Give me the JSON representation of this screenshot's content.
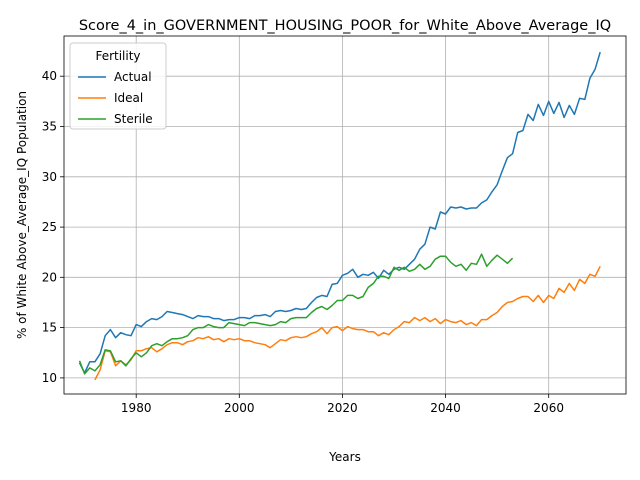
{
  "chart_data": {
    "type": "line",
    "title": "Score_4_in_GOVERNMENT_HOUSING_POOR_for_White_Above_Average_IQ",
    "xlabel": "Years",
    "ylabel": "% of White Above_Average_IQ Population",
    "xlim": [
      1966,
      2075
    ],
    "ylim": [
      8.4,
      44.0
    ],
    "xticks": [
      1980,
      2000,
      2020,
      2040,
      2060
    ],
    "yticks": [
      10,
      15,
      20,
      25,
      30,
      35,
      40
    ],
    "grid": true,
    "legend": {
      "title": "Fertility",
      "placement": "top-left"
    },
    "series": [
      {
        "name": "Actual",
        "color": "#1f77b4",
        "points": [
          [
            1969,
            11.5
          ],
          [
            1970,
            10.5
          ],
          [
            1971,
            11.6
          ],
          [
            1972,
            11.6
          ],
          [
            1973,
            12.4
          ],
          [
            1974,
            14.2
          ],
          [
            1975,
            14.8
          ],
          [
            1976,
            14.0
          ],
          [
            1977,
            14.5
          ],
          [
            1978,
            14.3
          ],
          [
            1979,
            14.2
          ],
          [
            1980,
            15.3
          ],
          [
            1981,
            15.1
          ],
          [
            1982,
            15.6
          ],
          [
            1983,
            15.9
          ],
          [
            1984,
            15.8
          ],
          [
            1985,
            16.1
          ],
          [
            1986,
            16.6
          ],
          [
            1987,
            16.5
          ],
          [
            1988,
            16.4
          ],
          [
            1989,
            16.3
          ],
          [
            1990,
            16.1
          ],
          [
            1991,
            15.9
          ],
          [
            1992,
            16.2
          ],
          [
            1993,
            16.1
          ],
          [
            1994,
            16.1
          ],
          [
            1995,
            15.9
          ],
          [
            1996,
            15.9
          ],
          [
            1997,
            15.7
          ],
          [
            1998,
            15.8
          ],
          [
            1999,
            15.8
          ],
          [
            2000,
            16.0
          ],
          [
            2001,
            16.0
          ],
          [
            2002,
            15.9
          ],
          [
            2003,
            16.2
          ],
          [
            2004,
            16.2
          ],
          [
            2005,
            16.3
          ],
          [
            2006,
            16.1
          ],
          [
            2007,
            16.6
          ],
          [
            2008,
            16.7
          ],
          [
            2009,
            16.6
          ],
          [
            2010,
            16.7
          ],
          [
            2011,
            16.9
          ],
          [
            2012,
            16.8
          ],
          [
            2013,
            16.9
          ],
          [
            2014,
            17.5
          ],
          [
            2015,
            18.0
          ],
          [
            2016,
            18.2
          ],
          [
            2017,
            18.1
          ],
          [
            2018,
            19.3
          ],
          [
            2019,
            19.4
          ],
          [
            2020,
            20.2
          ],
          [
            2021,
            20.4
          ],
          [
            2022,
            20.8
          ],
          [
            2023,
            20.0
          ],
          [
            2024,
            20.3
          ],
          [
            2025,
            20.2
          ],
          [
            2026,
            20.5
          ],
          [
            2027,
            19.9
          ],
          [
            2028,
            20.7
          ],
          [
            2029,
            20.3
          ],
          [
            2030,
            20.8
          ],
          [
            2031,
            21.0
          ],
          [
            2032,
            20.8
          ],
          [
            2033,
            21.3
          ],
          [
            2034,
            21.8
          ],
          [
            2035,
            22.8
          ],
          [
            2036,
            23.3
          ],
          [
            2037,
            25.0
          ],
          [
            2038,
            24.8
          ],
          [
            2039,
            26.5
          ],
          [
            2040,
            26.3
          ],
          [
            2041,
            27.0
          ],
          [
            2042,
            26.9
          ],
          [
            2043,
            27.0
          ],
          [
            2044,
            26.8
          ],
          [
            2045,
            26.9
          ],
          [
            2046,
            26.9
          ],
          [
            2047,
            27.4
          ],
          [
            2048,
            27.7
          ],
          [
            2049,
            28.5
          ],
          [
            2050,
            29.2
          ],
          [
            2051,
            30.6
          ],
          [
            2052,
            31.9
          ],
          [
            2053,
            32.3
          ],
          [
            2054,
            34.4
          ],
          [
            2055,
            34.6
          ],
          [
            2056,
            36.2
          ],
          [
            2057,
            35.6
          ],
          [
            2058,
            37.2
          ],
          [
            2059,
            36.1
          ],
          [
            2060,
            37.5
          ],
          [
            2061,
            36.3
          ],
          [
            2062,
            37.4
          ],
          [
            2063,
            35.9
          ],
          [
            2064,
            37.1
          ],
          [
            2065,
            36.2
          ],
          [
            2066,
            37.8
          ],
          [
            2067,
            37.7
          ],
          [
            2068,
            39.8
          ],
          [
            2069,
            40.7
          ],
          [
            2070,
            42.4
          ]
        ]
      },
      {
        "name": "Ideal",
        "color": "#ff7f0e",
        "points": [
          [
            1972,
            9.8
          ],
          [
            1973,
            10.8
          ],
          [
            1974,
            12.7
          ],
          [
            1975,
            12.6
          ],
          [
            1976,
            11.2
          ],
          [
            1977,
            11.7
          ],
          [
            1978,
            11.3
          ],
          [
            1979,
            11.8
          ],
          [
            1980,
            12.7
          ],
          [
            1981,
            12.7
          ],
          [
            1982,
            12.9
          ],
          [
            1983,
            13.0
          ],
          [
            1984,
            12.6
          ],
          [
            1985,
            12.9
          ],
          [
            1986,
            13.3
          ],
          [
            1987,
            13.5
          ],
          [
            1988,
            13.5
          ],
          [
            1989,
            13.3
          ],
          [
            1990,
            13.6
          ],
          [
            1991,
            13.7
          ],
          [
            1992,
            14.0
          ],
          [
            1993,
            13.9
          ],
          [
            1994,
            14.1
          ],
          [
            1995,
            13.8
          ],
          [
            1996,
            13.9
          ],
          [
            1997,
            13.6
          ],
          [
            1998,
            13.9
          ],
          [
            1999,
            13.8
          ],
          [
            2000,
            13.9
          ],
          [
            2001,
            13.7
          ],
          [
            2002,
            13.7
          ],
          [
            2003,
            13.5
          ],
          [
            2004,
            13.4
          ],
          [
            2005,
            13.3
          ],
          [
            2006,
            13.0
          ],
          [
            2007,
            13.4
          ],
          [
            2008,
            13.8
          ],
          [
            2009,
            13.7
          ],
          [
            2010,
            14.0
          ],
          [
            2011,
            14.1
          ],
          [
            2012,
            14.0
          ],
          [
            2013,
            14.1
          ],
          [
            2014,
            14.4
          ],
          [
            2015,
            14.6
          ],
          [
            2016,
            15.0
          ],
          [
            2017,
            14.4
          ],
          [
            2018,
            15.0
          ],
          [
            2019,
            15.1
          ],
          [
            2020,
            14.7
          ],
          [
            2021,
            15.1
          ],
          [
            2022,
            14.9
          ],
          [
            2023,
            14.8
          ],
          [
            2024,
            14.8
          ],
          [
            2025,
            14.6
          ],
          [
            2026,
            14.6
          ],
          [
            2027,
            14.2
          ],
          [
            2028,
            14.5
          ],
          [
            2029,
            14.3
          ],
          [
            2030,
            14.8
          ],
          [
            2031,
            15.1
          ],
          [
            2032,
            15.6
          ],
          [
            2033,
            15.5
          ],
          [
            2034,
            16.0
          ],
          [
            2035,
            15.7
          ],
          [
            2036,
            16.0
          ],
          [
            2037,
            15.6
          ],
          [
            2038,
            15.9
          ],
          [
            2039,
            15.4
          ],
          [
            2040,
            15.8
          ],
          [
            2041,
            15.6
          ],
          [
            2042,
            15.5
          ],
          [
            2043,
            15.7
          ],
          [
            2044,
            15.3
          ],
          [
            2045,
            15.5
          ],
          [
            2046,
            15.2
          ],
          [
            2047,
            15.8
          ],
          [
            2048,
            15.8
          ],
          [
            2049,
            16.2
          ],
          [
            2050,
            16.5
          ],
          [
            2051,
            17.1
          ],
          [
            2052,
            17.5
          ],
          [
            2053,
            17.6
          ],
          [
            2054,
            17.9
          ],
          [
            2055,
            18.1
          ],
          [
            2056,
            18.1
          ],
          [
            2057,
            17.6
          ],
          [
            2058,
            18.2
          ],
          [
            2059,
            17.5
          ],
          [
            2060,
            18.2
          ],
          [
            2061,
            17.9
          ],
          [
            2062,
            18.9
          ],
          [
            2063,
            18.5
          ],
          [
            2064,
            19.4
          ],
          [
            2065,
            18.7
          ],
          [
            2066,
            19.8
          ],
          [
            2067,
            19.4
          ],
          [
            2068,
            20.3
          ],
          [
            2069,
            20.1
          ],
          [
            2070,
            21.1
          ]
        ]
      },
      {
        "name": "Sterile",
        "color": "#2ca02c",
        "points": [
          [
            1969,
            11.7
          ],
          [
            1970,
            10.4
          ],
          [
            1971,
            11.0
          ],
          [
            1972,
            10.7
          ],
          [
            1973,
            11.3
          ],
          [
            1974,
            12.8
          ],
          [
            1975,
            12.7
          ],
          [
            1976,
            11.6
          ],
          [
            1977,
            11.7
          ],
          [
            1978,
            11.2
          ],
          [
            1979,
            11.9
          ],
          [
            1980,
            12.5
          ],
          [
            1981,
            12.1
          ],
          [
            1982,
            12.5
          ],
          [
            1983,
            13.2
          ],
          [
            1984,
            13.4
          ],
          [
            1985,
            13.2
          ],
          [
            1986,
            13.6
          ],
          [
            1987,
            13.9
          ],
          [
            1988,
            13.9
          ],
          [
            1989,
            14.0
          ],
          [
            1990,
            14.2
          ],
          [
            1991,
            14.8
          ],
          [
            1992,
            15.0
          ],
          [
            1993,
            15.0
          ],
          [
            1994,
            15.3
          ],
          [
            1995,
            15.1
          ],
          [
            1996,
            15.0
          ],
          [
            1997,
            15.0
          ],
          [
            1998,
            15.5
          ],
          [
            1999,
            15.4
          ],
          [
            2000,
            15.3
          ],
          [
            2001,
            15.2
          ],
          [
            2002,
            15.5
          ],
          [
            2003,
            15.5
          ],
          [
            2004,
            15.4
          ],
          [
            2005,
            15.3
          ],
          [
            2006,
            15.2
          ],
          [
            2007,
            15.3
          ],
          [
            2008,
            15.6
          ],
          [
            2009,
            15.5
          ],
          [
            2010,
            15.9
          ],
          [
            2011,
            16.0
          ],
          [
            2012,
            16.0
          ],
          [
            2013,
            16.0
          ],
          [
            2014,
            16.5
          ],
          [
            2015,
            16.9
          ],
          [
            2016,
            17.1
          ],
          [
            2017,
            16.8
          ],
          [
            2018,
            17.2
          ],
          [
            2019,
            17.7
          ],
          [
            2020,
            17.7
          ],
          [
            2021,
            18.2
          ],
          [
            2022,
            18.2
          ],
          [
            2023,
            17.9
          ],
          [
            2024,
            18.1
          ],
          [
            2025,
            19.0
          ],
          [
            2026,
            19.4
          ],
          [
            2027,
            20.1
          ],
          [
            2028,
            20.1
          ],
          [
            2029,
            19.9
          ],
          [
            2030,
            21.0
          ],
          [
            2031,
            20.7
          ],
          [
            2032,
            21.0
          ],
          [
            2033,
            20.6
          ],
          [
            2034,
            20.8
          ],
          [
            2035,
            21.3
          ],
          [
            2036,
            20.8
          ],
          [
            2037,
            21.1
          ],
          [
            2038,
            21.8
          ],
          [
            2039,
            22.1
          ],
          [
            2040,
            22.1
          ],
          [
            2041,
            21.5
          ],
          [
            2042,
            21.1
          ],
          [
            2043,
            21.3
          ],
          [
            2044,
            20.7
          ],
          [
            2045,
            21.4
          ],
          [
            2046,
            21.3
          ],
          [
            2047,
            22.3
          ],
          [
            2048,
            21.1
          ],
          [
            2049,
            21.7
          ],
          [
            2050,
            22.2
          ],
          [
            2051,
            21.8
          ],
          [
            2052,
            21.4
          ],
          [
            2053,
            21.9
          ]
        ]
      }
    ]
  }
}
